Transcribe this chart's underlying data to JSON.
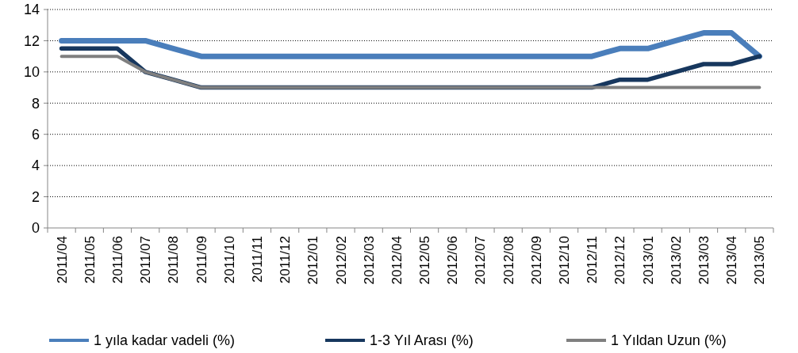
{
  "chart_data": {
    "type": "line",
    "categories": [
      "2011/04",
      "2011/05",
      "2011/06",
      "2011/07",
      "2011/08",
      "2011/09",
      "2011/10",
      "2011/11",
      "2011/12",
      "2012/01",
      "2012/02",
      "2012/03",
      "2012/04",
      "2012/05",
      "2012/06",
      "2012/07",
      "2012/08",
      "2012/09",
      "2012/10",
      "2012/11",
      "2012/12",
      "2013/01",
      "2013/02",
      "2013/03",
      "2013/04",
      "2013/05"
    ],
    "series": [
      {
        "name": "1 yıla kadar vadeli (%)",
        "color": "#4a7ebb",
        "values": [
          12,
          12,
          12,
          12,
          11.5,
          11,
          11,
          11,
          11,
          11,
          11,
          11,
          11,
          11,
          11,
          11,
          11,
          11,
          11,
          11,
          11.5,
          11.5,
          12,
          12.5,
          12.5,
          11
        ]
      },
      {
        "name": "1-3 Yıl Arası (%)",
        "color": "#17375e",
        "values": [
          11.5,
          11.5,
          11.5,
          10,
          9.5,
          9,
          9,
          9,
          9,
          9,
          9,
          9,
          9,
          9,
          9,
          9,
          9,
          9,
          9,
          9,
          9.5,
          9.5,
          10,
          10.5,
          10.5,
          11
        ]
      },
      {
        "name": "1 Yıldan Uzun (%)",
        "color": "#7f7f7f",
        "values": [
          11,
          11,
          11,
          10,
          9.5,
          9,
          9,
          9,
          9,
          9,
          9,
          9,
          9,
          9,
          9,
          9,
          9,
          9,
          9,
          9,
          9,
          9,
          9,
          9,
          9,
          9
        ]
      }
    ],
    "ylim": [
      0,
      14
    ],
    "yticks": [
      0,
      2,
      4,
      6,
      8,
      10,
      12,
      14
    ],
    "grid": "y",
    "legend": "bottom",
    "line_style": "solid",
    "marker": "none"
  }
}
